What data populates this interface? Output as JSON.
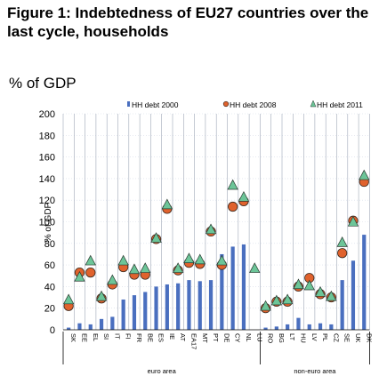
{
  "figure": {
    "title": "Figure 1: Indebtedness of EU27 countries over the last cycle, households",
    "subtitle": "% of GDP"
  },
  "chart_data": {
    "type": "bar",
    "categories": [
      "SK",
      "EE",
      "EL",
      "SI",
      "IT",
      "FI",
      "FR",
      "BE",
      "ES",
      "IE",
      "AT",
      "EA17",
      "MT",
      "PT",
      "DE",
      "CY",
      "NL",
      "LU",
      "RO",
      "BG",
      "LT",
      "HU",
      "LV",
      "PL",
      "CZ",
      "SE",
      "UK",
      "DK"
    ],
    "groups": [
      {
        "label": "euro area",
        "from": "SK",
        "to": "LU"
      },
      {
        "label": "non-euro area",
        "from": "RO",
        "to": "DK"
      }
    ],
    "series": [
      {
        "name": "HH debt 2000",
        "marker": "bar",
        "color": "#4a6fbf",
        "values": [
          2,
          6,
          5,
          10,
          12,
          28,
          32,
          35,
          40,
          42,
          43,
          46,
          45,
          46,
          70,
          77,
          79,
          0,
          2,
          3,
          5,
          11,
          5,
          6,
          5,
          46,
          64,
          88
        ]
      },
      {
        "name": "HH debt 2008",
        "marker": "circle",
        "color": "#e0622d",
        "values": [
          22,
          53,
          53,
          29,
          42,
          58,
          51,
          51,
          84,
          112,
          55,
          62,
          61,
          91,
          60,
          114,
          119,
          0,
          20,
          26,
          26,
          40,
          48,
          33,
          30,
          71,
          101,
          137
        ]
      },
      {
        "name": "HH debt 2011",
        "marker": "triangle",
        "color": "#6cc598",
        "values": [
          27,
          48,
          63,
          30,
          45,
          63,
          55,
          56,
          84,
          115,
          56,
          65,
          64,
          92,
          63,
          133,
          122,
          56,
          21,
          26,
          27,
          41,
          40,
          34,
          30,
          80,
          99,
          142
        ]
      }
    ],
    "ylabel": "% of GDP",
    "ylim": [
      0,
      200
    ],
    "yticks": [
      0,
      20,
      40,
      60,
      80,
      100,
      120,
      140,
      160,
      180,
      200
    ],
    "grid": true,
    "legend_position": "top"
  }
}
